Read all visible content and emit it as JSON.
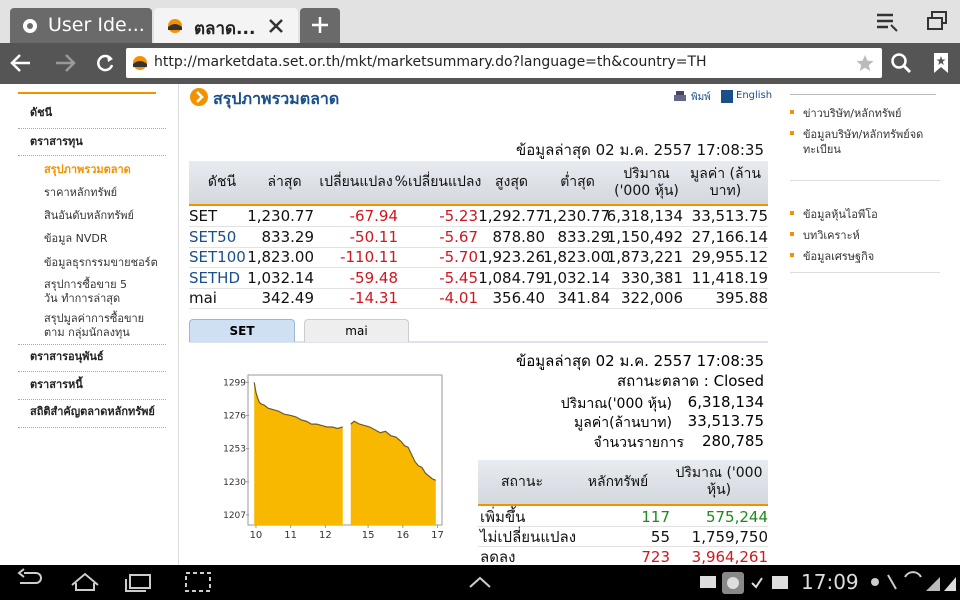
{
  "browser": {
    "tabs": [
      {
        "title": "User Ide..."
      },
      {
        "title": "ตลาด..."
      }
    ],
    "url": "http://marketdata.set.or.th/mkt/marketsummary.do?language=th&country=TH"
  },
  "nav": {
    "items": [
      "ดัชนี",
      "ตราสารทุน",
      "สรุปภาพรวมตลาด",
      "ราคาหลักทรัพย์",
      "สินอันดับหลักทรัพย์",
      "ข้อมูล NVDR",
      "ข้อมูลธุรกรรมขายชอร์ต",
      "สรุปการซื้อขาย 5 วัน ทำการล่าสุด",
      "สรุปมูลค่าการซื้อขายตาม กลุ่มนักลงทุน",
      "ตราสารอนุพันธ์",
      "ตราสารหนี้",
      "สถิติสำคัญตลาดหลักทรัพย์"
    ]
  },
  "page": {
    "title": "สรุปภาพรวมตลาด",
    "print": "พิมพ์",
    "english": "English",
    "updated": "ข้อมูลล่าสุด 02 ม.ค. 2557 17:08:35"
  },
  "index_table": {
    "headers": [
      "ดัชนี",
      "ล่าสุด",
      "เปลี่ยนแปลง",
      "%เปลี่ยนแปลง",
      "สูงสุด",
      "ต่ำสุด",
      "ปริมาณ ('000 หุ้น)",
      "มูลค่า (ล้านบาท)"
    ],
    "rows": [
      [
        "SET",
        "1,230.77",
        "-67.94",
        "-5.23",
        "1,292.77",
        "1,230.77",
        "6,318,134",
        "33,513.75"
      ],
      [
        "SET50",
        "833.29",
        "-50.11",
        "-5.67",
        "878.80",
        "833.29",
        "1,150,492",
        "27,166.14"
      ],
      [
        "SET100",
        "1,823.00",
        "-110.11",
        "-5.70",
        "1,923.26",
        "1,823.00",
        "1,873,221",
        "29,955.12"
      ],
      [
        "SETHD",
        "1,032.14",
        "-59.48",
        "-5.45",
        "1,084.79",
        "1,032.14",
        "330,381",
        "11,418.19"
      ],
      [
        "mai",
        "342.49",
        "-14.31",
        "-4.01",
        "356.40",
        "341.84",
        "322,006",
        "395.88"
      ]
    ]
  },
  "chart_tabs": [
    "SET",
    "mai"
  ],
  "chart_data": {
    "type": "line",
    "x": [
      9.95,
      10.0,
      10.05,
      10.1,
      10.15,
      10.25,
      10.35,
      10.5,
      10.65,
      10.8,
      11.0,
      11.15,
      11.3,
      11.45,
      11.6,
      11.75,
      11.9,
      12.05,
      12.2,
      12.35,
      12.5,
      13.5,
      14.5,
      14.6,
      14.75,
      14.9,
      15.05,
      15.2,
      15.35,
      15.5,
      15.65,
      15.8,
      15.95,
      16.05,
      16.15,
      16.25,
      16.35,
      16.45,
      16.55,
      16.65,
      16.75,
      16.85,
      16.95
    ],
    "series": [
      {
        "color": "#f9b800",
        "values": [
          1299,
          1292,
          1288,
          1285,
          1284,
          1283,
          1281,
          1280,
          1279,
          1277,
          1276,
          1275,
          1273,
          1272,
          1270,
          1270,
          1269,
          1268,
          1268,
          1267,
          1268,
          null,
          1270,
          1272,
          1270,
          1269,
          1268,
          1266,
          1264,
          1265,
          1262,
          1261,
          1258,
          1255,
          1254,
          1249,
          1244,
          1241,
          1240,
          1236,
          1234,
          1232,
          1231
        ]
      }
    ],
    "xlim": [
      9.8,
      17.1
    ],
    "xticks": [
      10,
      11,
      12,
      15,
      16,
      17
    ],
    "ylim": [
      1200,
      1302
    ],
    "yticks": [
      1299,
      1276,
      1253,
      1230,
      1207
    ]
  },
  "market_info": {
    "updated": "ข้อมูลล่าสุด 02 ม.ค. 2557 17:08:35",
    "status": "สถานะตลาด : Closed",
    "volume_label": "ปริมาณ('000 หุ้น)",
    "volume": "6,318,134",
    "value_label": "มูลค่า(ล้านบาท)",
    "value": "33,513.75",
    "trades_label": "จำนวนรายการ",
    "trades": "280,785"
  },
  "breadth_table": {
    "headers": [
      "สถานะ",
      "หลักทรัพย์",
      "ปริมาณ ('000 หุ้น)"
    ],
    "rows": [
      [
        "เพิ่มขึ้น",
        "117",
        "575,244"
      ],
      [
        "ไม่เปลี่ยนแปลง",
        "55",
        "1,759,750"
      ],
      [
        "ลดลง",
        "723",
        "3,964,261"
      ]
    ]
  },
  "right_links": [
    "ข่าวบริษัท/หลักทรัพย์",
    "ข้อมูลบริษัท/หลักทรัพย์จด ทะเบียน",
    "ข้อมูลหุ้นไอพีโอ",
    "บทวิเคราะห์",
    "ข้อมูลเศรษฐกิจ"
  ],
  "status_bar": {
    "time": "17:09"
  }
}
